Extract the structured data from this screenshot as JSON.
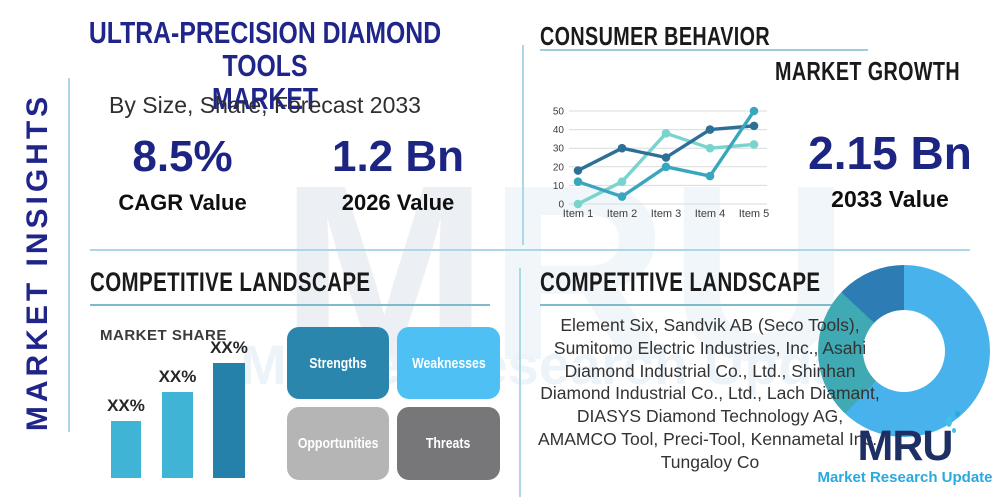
{
  "colors": {
    "navy": "#1d2583",
    "title_navy": "#20258a",
    "heading_dark": "#1a1a1a",
    "divider_light_blue": "#aed7e6",
    "underline_teal": "#7fbccb",
    "bar_light": "#3fb4d5",
    "bar_dark": "#2581aa",
    "logo_navy": "#1e2f63",
    "logo_blue": "#2aa9e0",
    "body_text": "#333333"
  },
  "watermark": {
    "text_bold": "M",
    "text_light": "RU"
  },
  "sidebar": {
    "label": "MARKET INSIGHTS"
  },
  "header": {
    "title_line1": "ULTRA-PRECISION DIAMOND TOOLS",
    "title_line2": "MARKET",
    "subtitle": "By Size, Share, Forecast 2033"
  },
  "stats": {
    "cagr": {
      "value": "8.5%",
      "label": "CAGR Value"
    },
    "y2026": {
      "value": "1.2 Bn",
      "label": "2026 Value"
    },
    "y2033": {
      "value": "2.15 Bn",
      "label": "2033 Value"
    }
  },
  "sections": {
    "consumer_behavior": {
      "title": "CONSUMER BEHAVIOR",
      "subtitle": "MARKET GROWTH"
    },
    "competitive_left": {
      "title": "COMPETITIVE LANDSCAPE",
      "market_share_label": "MARKET SHARE"
    },
    "competitive_right": {
      "title": "COMPETITIVE LANDSCAPE",
      "companies": "Element Six, Sandvik AB (Seco Tools), Sumitomo Electric Industries, Inc., Asahi Diamond Industrial Co., Ltd., Shinhan Diamond Industrial Co., Ltd., Lach Diamant, DIASYS Diamond Technology AG, AMAMCO Tool, Preci-Tool, Kennametal Inc., Tungaloy Co"
    }
  },
  "swot": {
    "items": [
      {
        "label": "Strengths",
        "color": "#2b86ae"
      },
      {
        "label": "Weaknesses",
        "color": "#4ec0f3"
      },
      {
        "label": "Opportunities",
        "color": "#b5b5b6"
      },
      {
        "label": "Threats",
        "color": "#777779"
      }
    ]
  },
  "logo": {
    "name": "MRU",
    "tagline": "Market Research Update"
  },
  "chart_data": [
    {
      "id": "market-growth-line",
      "type": "line",
      "x": [
        "Item 1",
        "Item 2",
        "Item 3",
        "Item 4",
        "Item 5"
      ],
      "series": [
        {
          "name": "series-dark-blue",
          "color": "#2e6f96",
          "values": [
            18,
            30,
            25,
            40,
            42
          ]
        },
        {
          "name": "series-teal",
          "color": "#3aa6bd",
          "values": [
            12,
            4,
            20,
            15,
            50
          ]
        },
        {
          "name": "series-mint",
          "color": "#79d4cd",
          "values": [
            0,
            12,
            38,
            30,
            32
          ]
        }
      ],
      "ylim": [
        0,
        50
      ],
      "yticks": [
        0,
        10,
        20,
        30,
        40,
        50
      ],
      "grid": true,
      "legend": false
    },
    {
      "id": "market-share-bar",
      "type": "bar",
      "title": "MARKET SHARE",
      "categories": [
        "XX%",
        "XX%",
        "XX%"
      ],
      "values": [
        30,
        45,
        60
      ],
      "value_labels": [
        "XX%",
        "XX%",
        "XX%"
      ],
      "colors": [
        "#3fb4d5",
        "#3fb4d5",
        "#2581aa"
      ],
      "ylim": [
        0,
        60
      ]
    },
    {
      "id": "company-share-donut",
      "type": "pie",
      "donut": true,
      "slices": [
        {
          "name": "light-blue-segment",
          "value": 62,
          "color": "#47b2ec"
        },
        {
          "name": "teal-segment",
          "value": 25,
          "color": "#3fa9b4"
        },
        {
          "name": "dark-blue-segment",
          "value": 13,
          "color": "#2d7cb4"
        }
      ]
    }
  ]
}
